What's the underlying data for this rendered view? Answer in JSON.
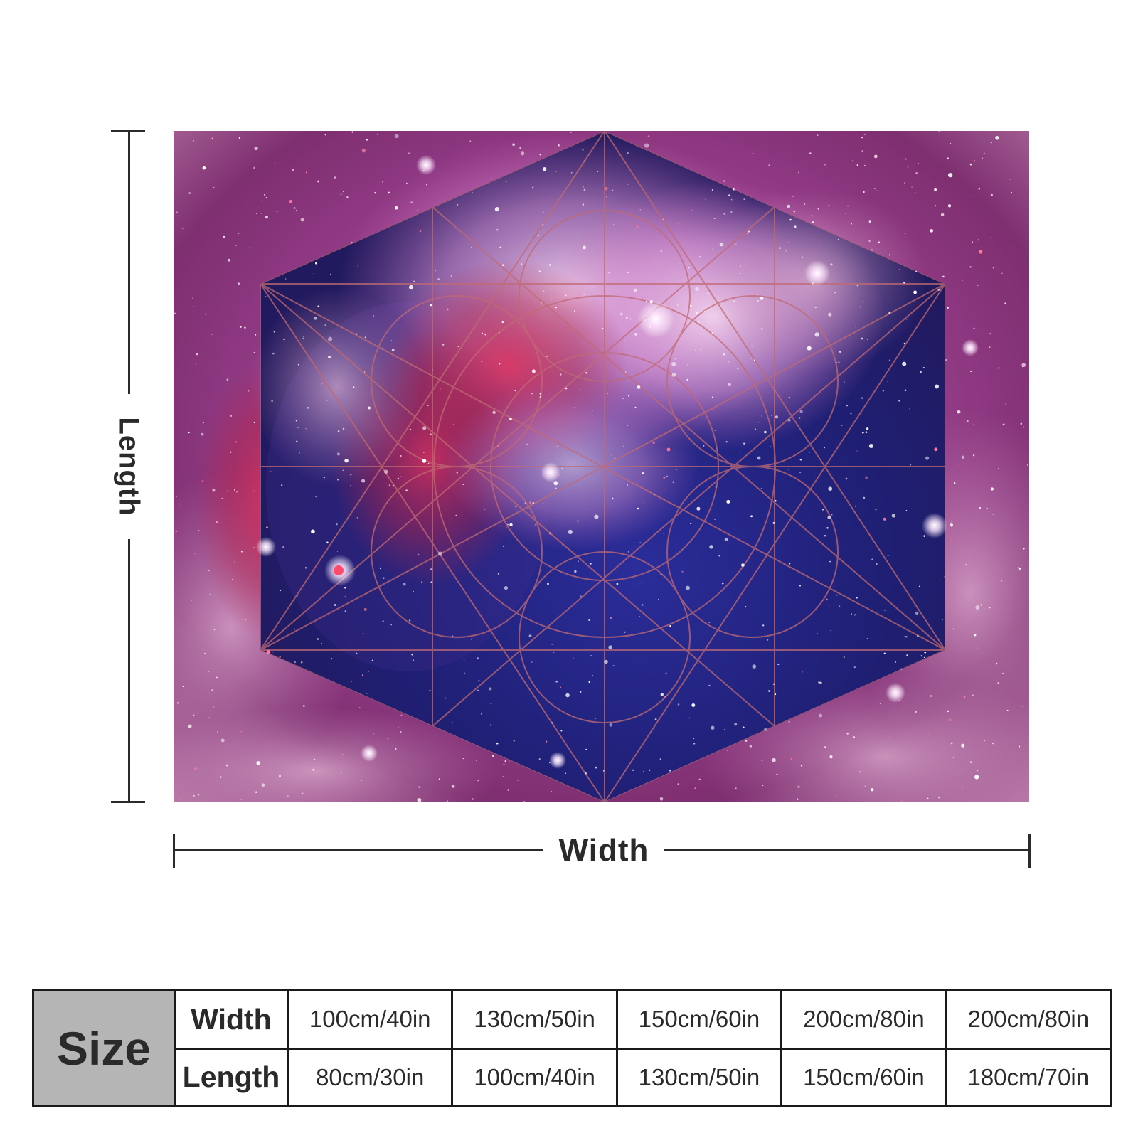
{
  "dimensions": {
    "length_label": "Length",
    "width_label": "Width"
  },
  "size_table": {
    "header": "Size",
    "rows": [
      {
        "label": "Width",
        "values": [
          "100cm/40in",
          "130cm/50in",
          "150cm/60in",
          "200cm/80in",
          "200cm/80in"
        ]
      },
      {
        "label": "Length",
        "values": [
          "80cm/30in",
          "100cm/40in",
          "130cm/50in",
          "150cm/60in",
          "180cm/70in"
        ]
      }
    ]
  },
  "artwork": {
    "colors": {
      "nebula_pink": "#d77fd0",
      "nebula_red": "#b8254a",
      "space_blue": "#23207a",
      "purple": "#8a3fa8",
      "geometry_lines": "#c06a74"
    }
  }
}
